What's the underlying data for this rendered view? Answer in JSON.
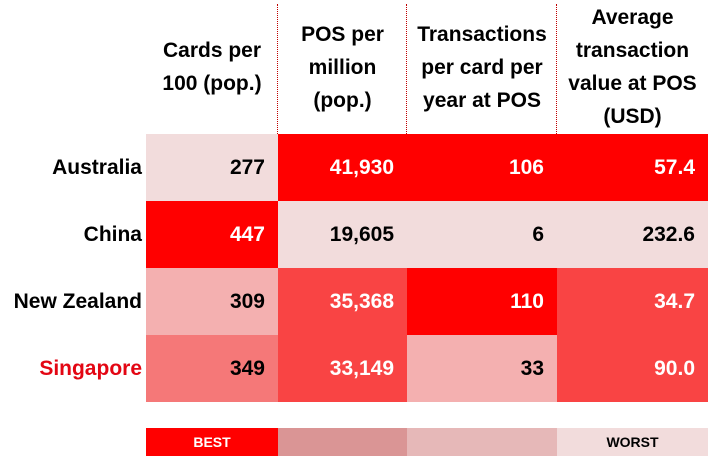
{
  "chart_data": {
    "type": "table",
    "columns": [
      "Cards per 100 (pop.)",
      "POS per million (pop.)",
      "Transactions per card per year at POS",
      "Average transaction value at POS (USD)"
    ],
    "rows": [
      {
        "label": "Australia",
        "values": [
          "277",
          "41,930",
          "106",
          "57.4"
        ],
        "shade": [
          1,
          5,
          5,
          5
        ],
        "highlight": false
      },
      {
        "label": "China",
        "values": [
          "447",
          "19,605",
          "6",
          "232.6"
        ],
        "shade": [
          5,
          1,
          1,
          1
        ],
        "highlight": false
      },
      {
        "label": "New Zealand",
        "values": [
          "309",
          "35,368",
          "110",
          "34.7"
        ],
        "shade": [
          2,
          4,
          5,
          4
        ],
        "highlight": false
      },
      {
        "label": "Singapore",
        "values": [
          "349",
          "33,149",
          "33",
          "90.0"
        ],
        "shade": [
          3,
          4,
          2,
          4
        ],
        "highlight": true
      }
    ],
    "legend": {
      "best_label": "BEST",
      "worst_label": "WORST",
      "colors": [
        "#ff0000",
        "#da9595",
        "#e6b8b8",
        "#f2dcdc"
      ]
    },
    "palette": {
      "1": "#f2dcdc",
      "2": "#f4b0b0",
      "3": "#f57878",
      "4": "#f94444",
      "5": "#ff0000"
    },
    "highlight_color": "#e30613"
  }
}
